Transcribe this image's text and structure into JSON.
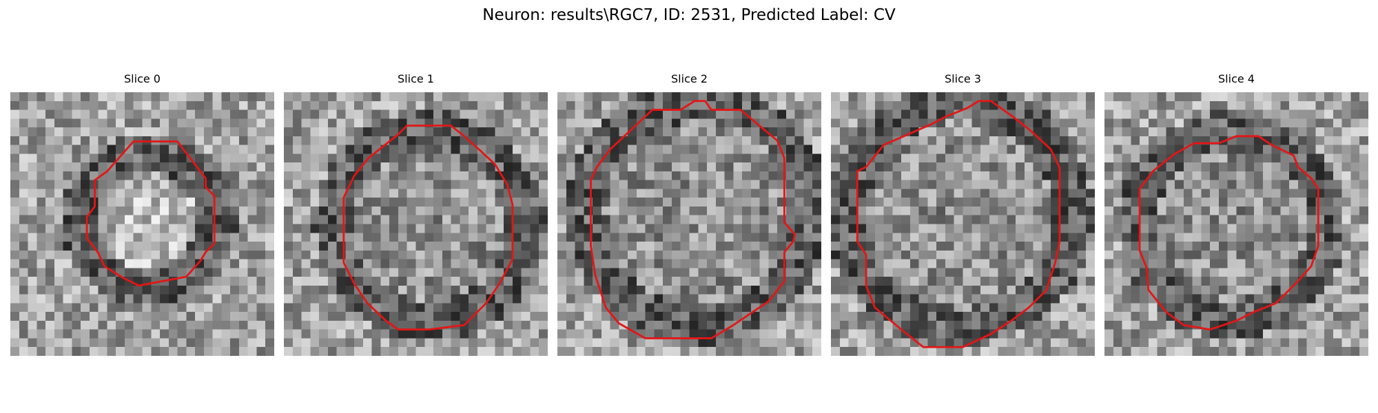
{
  "figure": {
    "title": "Neuron: results\\RGC7, ID: 2531, Predicted Label: CV",
    "outline_color": "#e51515",
    "colormap": "grayscale",
    "panels": [
      {
        "title": "Slice 0"
      },
      {
        "title": "Slice 1"
      },
      {
        "title": "Slice 2"
      },
      {
        "title": "Slice 3"
      },
      {
        "title": "Slice 4"
      }
    ]
  }
}
